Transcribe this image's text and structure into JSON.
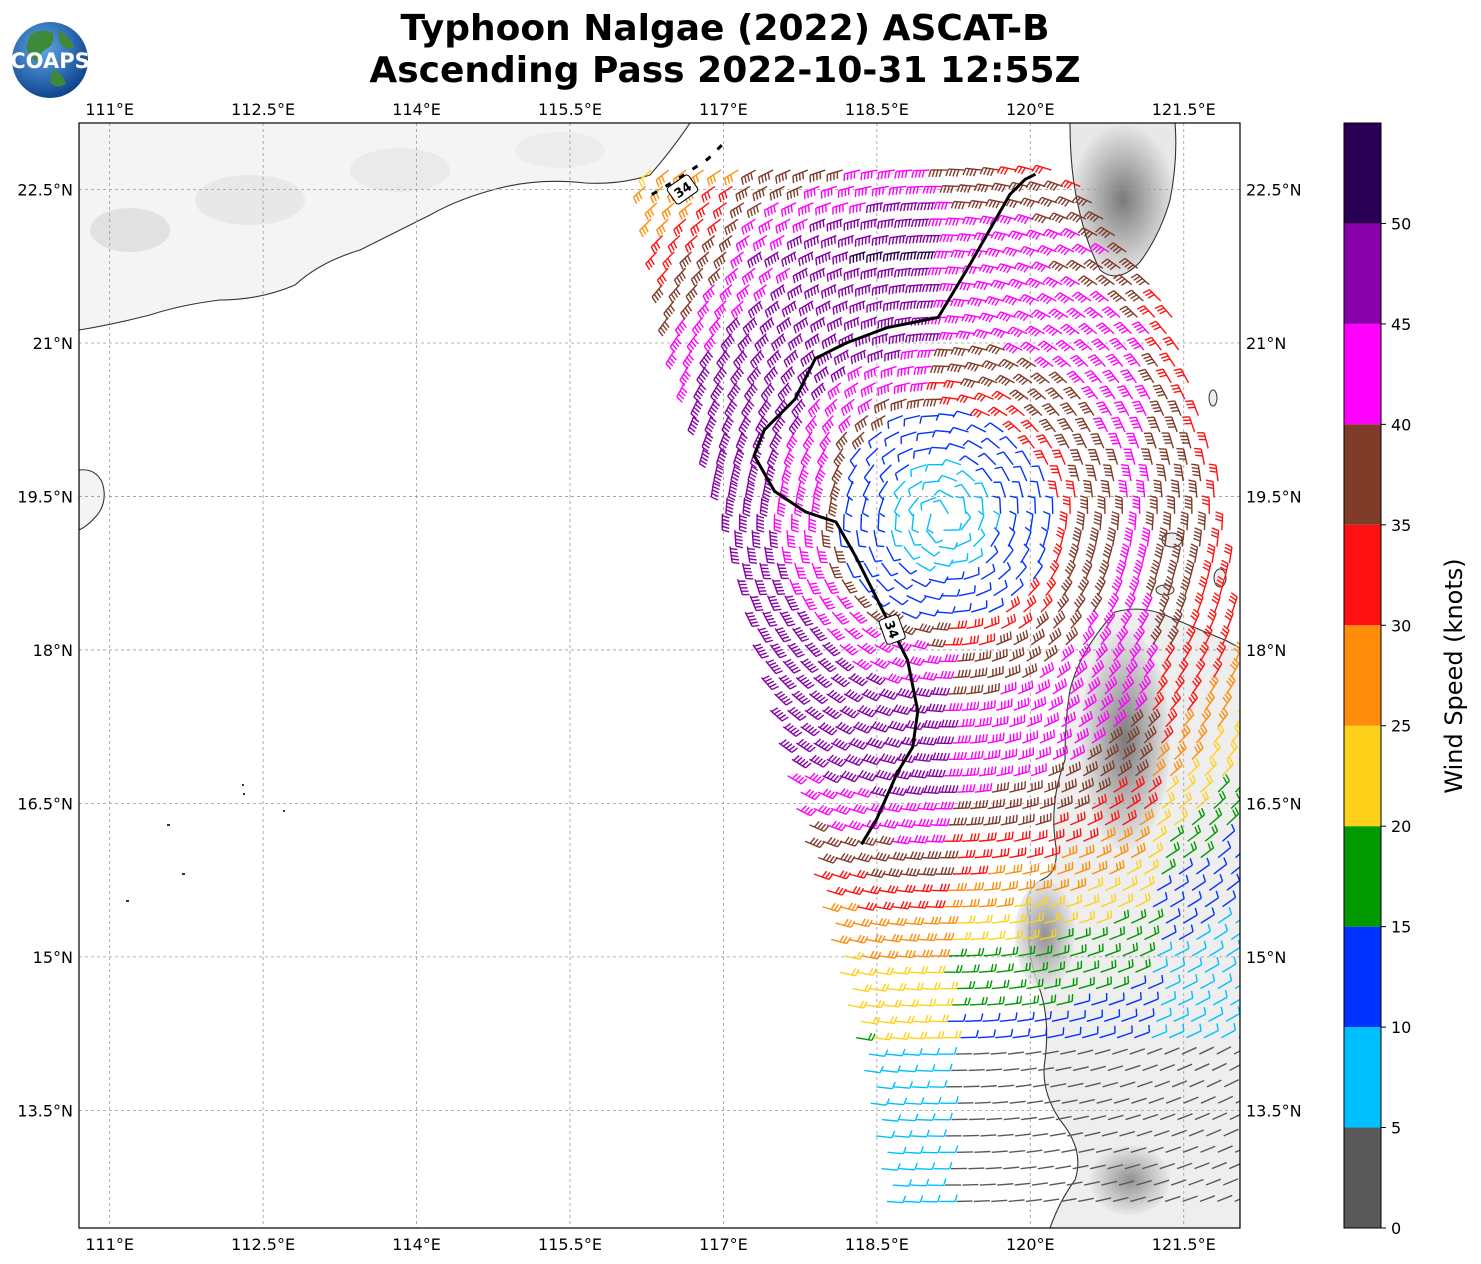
{
  "title_line1": "Typhoon Nalgae (2022) ASCAT-B",
  "title_line2": "Ascending Pass 2022-10-31 12:55Z",
  "logo": {
    "text": "COAPS"
  },
  "map": {
    "lon_range": [
      110.7,
      122.05
    ],
    "lat_range": [
      12.35,
      23.15
    ],
    "lon_ticks": [
      111,
      112.5,
      114,
      115.5,
      117,
      118.5,
      120,
      121.5
    ],
    "lon_tick_labels": [
      "111°E",
      "112.5°E",
      "114°E",
      "115.5°E",
      "117°E",
      "118.5°E",
      "120°E",
      "121.5°E"
    ],
    "lat_ticks": [
      22.5,
      21,
      19.5,
      18,
      16.5,
      15,
      13.5
    ],
    "lat_tick_labels": [
      "22.5°N",
      "21°N",
      "19.5°N",
      "18°N",
      "16.5°N",
      "15°N",
      "13.5°N"
    ],
    "gridlines": true,
    "contour": {
      "value_label": "34",
      "color": "#000000",
      "points_lonlat": [
        [
          120.05,
          22.65
        ],
        [
          119.95,
          22.6
        ],
        [
          119.8,
          22.45
        ],
        [
          119.6,
          22.1
        ],
        [
          119.4,
          21.75
        ],
        [
          119.1,
          21.25
        ],
        [
          118.6,
          21.15
        ],
        [
          118.2,
          21.0
        ],
        [
          117.9,
          20.85
        ],
        [
          117.7,
          20.45
        ],
        [
          117.4,
          20.15
        ],
        [
          117.3,
          19.9
        ],
        [
          117.5,
          19.55
        ],
        [
          117.8,
          19.35
        ],
        [
          118.1,
          19.25
        ],
        [
          118.3,
          18.9
        ],
        [
          118.5,
          18.5
        ],
        [
          118.65,
          18.2
        ],
        [
          118.8,
          17.9
        ],
        [
          118.9,
          17.4
        ],
        [
          118.85,
          17.05
        ],
        [
          118.7,
          16.8
        ],
        [
          118.5,
          16.35
        ],
        [
          118.35,
          16.1
        ]
      ],
      "upper_segment_lonlat": [
        [
          116.3,
          22.45
        ],
        [
          116.55,
          22.6
        ],
        [
          116.85,
          22.8
        ],
        [
          117.0,
          22.95
        ]
      ],
      "label_positions_lonlat": [
        [
          116.6,
          22.5
        ],
        [
          118.65,
          18.2
        ]
      ]
    },
    "swath": {
      "west_edge_lonlat": [
        [
          116.2,
          22.75
        ],
        [
          116.5,
          21.0
        ],
        [
          116.95,
          19.5
        ],
        [
          117.3,
          18.0
        ],
        [
          117.7,
          16.5
        ],
        [
          118.1,
          15.0
        ],
        [
          118.4,
          13.8
        ],
        [
          118.6,
          12.6
        ]
      ],
      "east_edge_lonlat": [
        [
          119.5,
          23.1
        ],
        [
          120.6,
          22.5
        ],
        [
          121.4,
          21.3
        ],
        [
          121.9,
          19.5
        ],
        [
          122.05,
          18.0
        ],
        [
          122.05,
          12.4
        ]
      ]
    }
  },
  "colorbar": {
    "label": "Wind Speed (knots)",
    "ticks": [
      0,
      5,
      10,
      15,
      20,
      25,
      30,
      35,
      40,
      45,
      50
    ],
    "bins": [
      {
        "from": 0,
        "to": 5,
        "color": "#595959"
      },
      {
        "from": 5,
        "to": 10,
        "color": "#00bfff"
      },
      {
        "from": 10,
        "to": 15,
        "color": "#0033ff"
      },
      {
        "from": 15,
        "to": 20,
        "color": "#009900"
      },
      {
        "from": 20,
        "to": 25,
        "color": "#ffd11a"
      },
      {
        "from": 25,
        "to": 30,
        "color": "#ff8c0a"
      },
      {
        "from": 30,
        "to": 35,
        "color": "#ff1111"
      },
      {
        "from": 35,
        "to": 40,
        "color": "#7f3c28"
      },
      {
        "from": 40,
        "to": 45,
        "color": "#ff00ff"
      },
      {
        "from": 45,
        "to": 50,
        "color": "#8800aa"
      },
      {
        "from": 50,
        "to": 55,
        "color": "#2a0055"
      }
    ]
  },
  "storm_center_lonlat": [
    119.15,
    19.3
  ]
}
